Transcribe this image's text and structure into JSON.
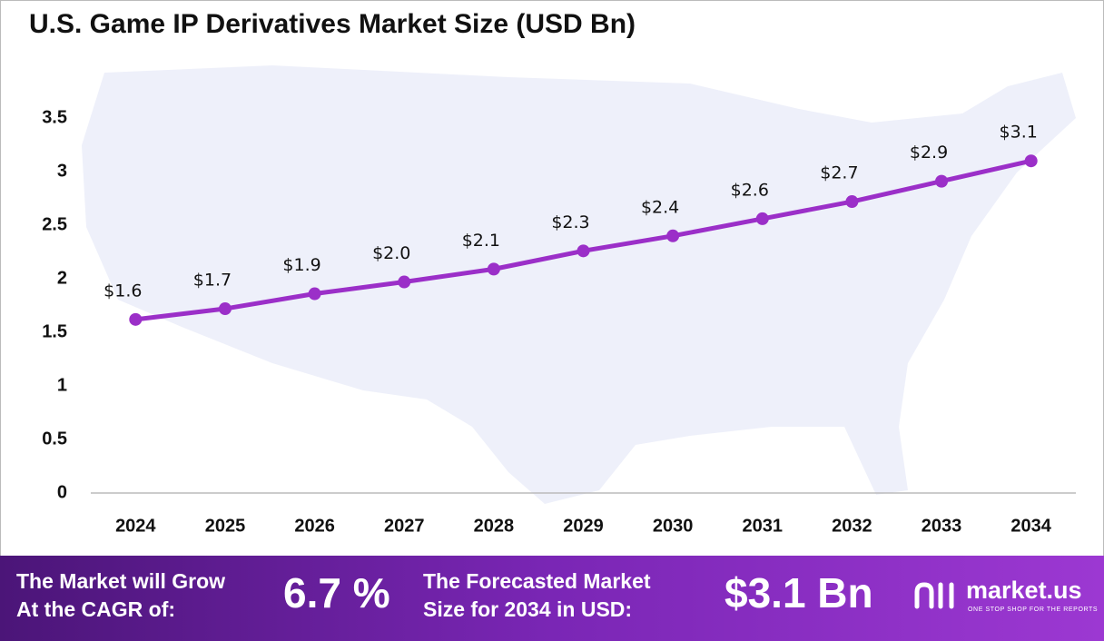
{
  "chart_data": {
    "type": "line",
    "title": "U.S. Game IP Derivatives Market Size (USD Bn)",
    "categories": [
      "2024",
      "2025",
      "2026",
      "2027",
      "2028",
      "2029",
      "2030",
      "2031",
      "2032",
      "2033",
      "2034"
    ],
    "values": [
      1.62,
      1.72,
      1.86,
      1.97,
      2.09,
      2.26,
      2.4,
      2.56,
      2.72,
      2.91,
      3.1
    ],
    "value_labels": [
      "$1.6",
      "$1.7",
      "$1.9",
      "$2.0",
      "$2.1",
      "$2.3",
      "$2.4",
      "$2.6",
      "$2.7",
      "$2.9",
      "$3.1"
    ],
    "color": "#9b2fc8",
    "ylim": [
      0,
      4
    ],
    "yticks": [
      0,
      0.5,
      1,
      1.5,
      2,
      2.5,
      3,
      3.5
    ],
    "grid": false
  },
  "footer": {
    "cagr_text": [
      "The Market will Grow",
      "At the CAGR of:"
    ],
    "cagr_value": "6.7 %",
    "forecast_text": [
      "The Forecasted Market",
      "Size for 2034 in USD:"
    ],
    "forecast_value": "$3.1 Bn",
    "brand": "market.us",
    "tagline": "ONE STOP SHOP FOR THE REPORTS"
  }
}
